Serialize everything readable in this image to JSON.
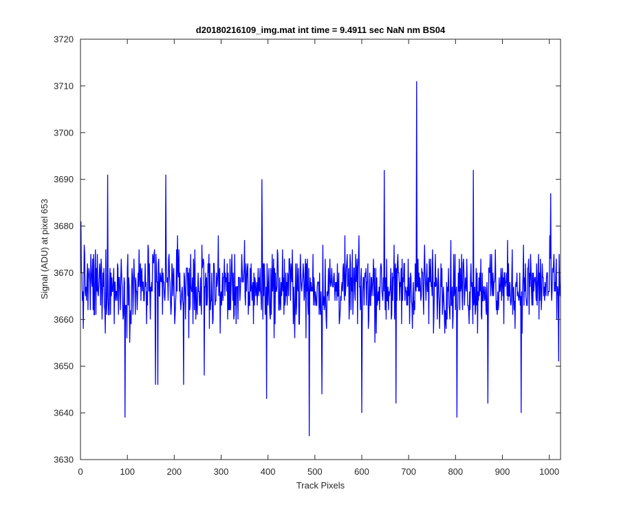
{
  "chart_data": {
    "type": "line",
    "title": "d20180216109_img.mat int time = 9.4911 sec  NaN nm BS04",
    "xlabel": "Track Pixels",
    "ylabel": "Signal (ADU) at pixel 653",
    "xlim": [
      0,
      1024
    ],
    "ylim": [
      3630,
      3720
    ],
    "xticks": [
      0,
      100,
      200,
      300,
      400,
      500,
      600,
      700,
      800,
      900,
      1000
    ],
    "yticks": [
      3630,
      3640,
      3650,
      3660,
      3670,
      3680,
      3690,
      3700,
      3710,
      3720
    ],
    "grid": false,
    "legend": "none",
    "line_color": "#0000ff",
    "series": [
      {
        "x_start": 1,
        "x_step": 1,
        "baseline": 3667,
        "noise_amplitude": 8,
        "count": 1024,
        "notable_points": [
          {
            "x": 1,
            "y": 3681
          },
          {
            "x": 58,
            "y": 3691
          },
          {
            "x": 95,
            "y": 3639
          },
          {
            "x": 160,
            "y": 3646
          },
          {
            "x": 165,
            "y": 3646
          },
          {
            "x": 182,
            "y": 3691
          },
          {
            "x": 220,
            "y": 3646
          },
          {
            "x": 264,
            "y": 3648
          },
          {
            "x": 387,
            "y": 3690
          },
          {
            "x": 397,
            "y": 3643
          },
          {
            "x": 488,
            "y": 3635
          },
          {
            "x": 515,
            "y": 3644
          },
          {
            "x": 600,
            "y": 3640
          },
          {
            "x": 648,
            "y": 3692
          },
          {
            "x": 673,
            "y": 3642
          },
          {
            "x": 717,
            "y": 3711
          },
          {
            "x": 803,
            "y": 3639
          },
          {
            "x": 838,
            "y": 3692
          },
          {
            "x": 869,
            "y": 3642
          },
          {
            "x": 940,
            "y": 3640
          },
          {
            "x": 1003,
            "y": 3687
          },
          {
            "x": 1020,
            "y": 3651
          }
        ]
      }
    ]
  }
}
